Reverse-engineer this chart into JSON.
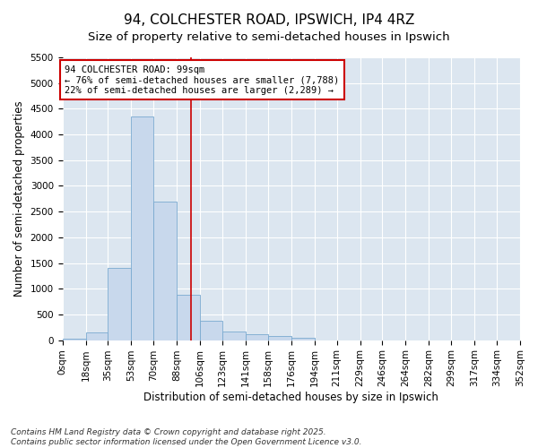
{
  "title": "94, COLCHESTER ROAD, IPSWICH, IP4 4RZ",
  "subtitle": "Size of property relative to semi-detached houses in Ipswich",
  "xlabel": "Distribution of semi-detached houses by size in Ipswich",
  "ylabel": "Number of semi-detached properties",
  "property_size": 99,
  "property_label": "94 COLCHESTER ROAD: 99sqm",
  "pct_smaller": 76,
  "pct_larger": 22,
  "n_smaller": 7788,
  "n_larger": 2289,
  "bar_color": "#c8d8ec",
  "bar_edge_color": "#7aaad0",
  "vline_color": "#cc0000",
  "annotation_box_color": "#cc0000",
  "bins": [
    0,
    18,
    35,
    53,
    70,
    88,
    106,
    123,
    141,
    158,
    176,
    194,
    211,
    229,
    246,
    264,
    282,
    299,
    317,
    334,
    352
  ],
  "bin_labels": [
    "0sqm",
    "18sqm",
    "35sqm",
    "53sqm",
    "70sqm",
    "88sqm",
    "106sqm",
    "123sqm",
    "141sqm",
    "158sqm",
    "176sqm",
    "194sqm",
    "211sqm",
    "229sqm",
    "246sqm",
    "264sqm",
    "282sqm",
    "299sqm",
    "317sqm",
    "334sqm",
    "352sqm"
  ],
  "counts": [
    30,
    150,
    1400,
    4350,
    2700,
    880,
    380,
    160,
    110,
    80,
    40,
    0,
    0,
    0,
    0,
    0,
    0,
    0,
    0,
    0
  ],
  "ylim": [
    0,
    5500
  ],
  "yticks": [
    0,
    500,
    1000,
    1500,
    2000,
    2500,
    3000,
    3500,
    4000,
    4500,
    5000,
    5500
  ],
  "plot_bg_color": "#dce6f0",
  "grid_color": "#ffffff",
  "footer_line1": "Contains HM Land Registry data © Crown copyright and database right 2025.",
  "footer_line2": "Contains public sector information licensed under the Open Government Licence v3.0.",
  "title_fontsize": 11,
  "subtitle_fontsize": 9.5,
  "axis_label_fontsize": 8.5,
  "tick_fontsize": 7.5,
  "footer_fontsize": 6.5,
  "annot_fontsize": 7.5
}
